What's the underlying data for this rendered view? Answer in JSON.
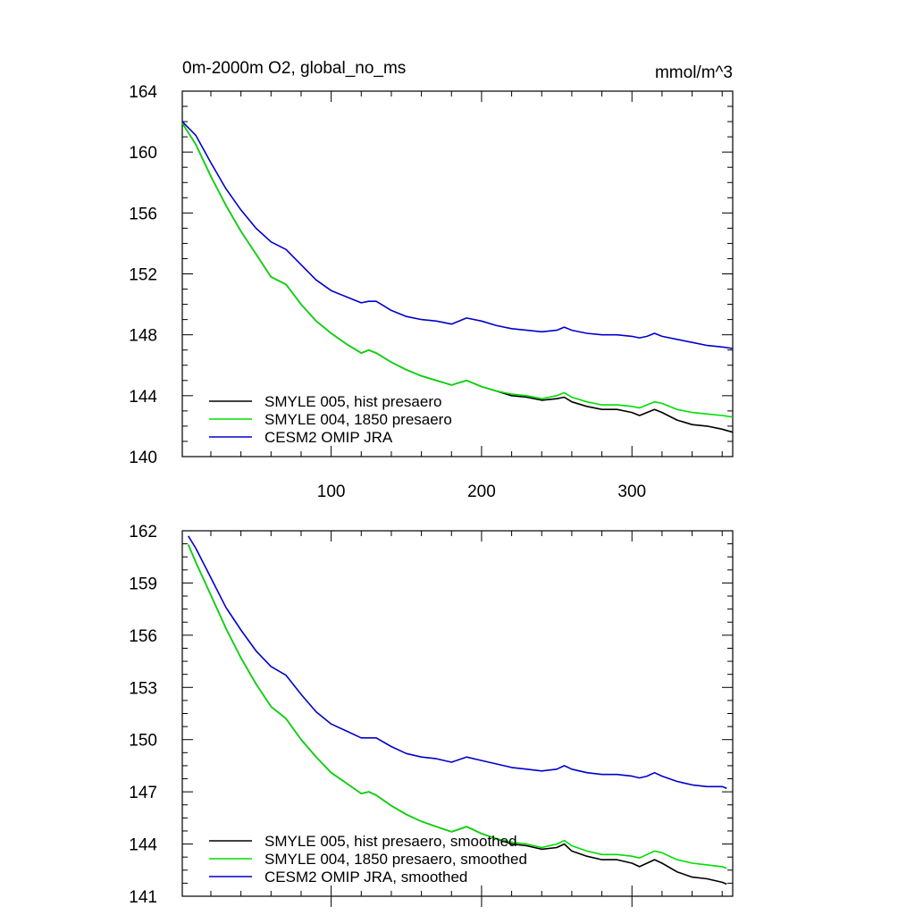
{
  "chart_data": [
    {
      "type": "line",
      "title": "0m-2000m O2, global_no_ms",
      "units": "mmol/m^3",
      "xlabel": "",
      "ylabel": "",
      "xlim": [
        1,
        367
      ],
      "ylim": [
        140,
        164
      ],
      "x_ticks": [
        100,
        200,
        300
      ],
      "y_ticks": [
        140,
        144,
        148,
        152,
        156,
        160,
        164
      ],
      "x_tick_labels_position": "bottom",
      "grid": false,
      "legend_position": "bottom-left",
      "series": [
        {
          "name": "SMYLE 005, hist presaero",
          "color": "#000000",
          "x": [
            1,
            10,
            20,
            30,
            40,
            50,
            60,
            70,
            80,
            90,
            100,
            110,
            120,
            125,
            130,
            140,
            150,
            160,
            170,
            180,
            190,
            200,
            210,
            220,
            230,
            240,
            250,
            255,
            260,
            270,
            280,
            290,
            300,
            305,
            310,
            315,
            320,
            330,
            340,
            350,
            360,
            367
          ],
          "values": [
            161.9,
            160.5,
            158.4,
            156.5,
            154.8,
            153.3,
            151.8,
            151.3,
            150.0,
            148.9,
            148.1,
            147.4,
            146.8,
            147.0,
            146.8,
            146.2,
            145.7,
            145.3,
            145.0,
            144.7,
            145.0,
            144.6,
            144.3,
            144.0,
            143.9,
            143.7,
            143.8,
            143.9,
            143.6,
            143.3,
            143.1,
            143.1,
            142.9,
            142.7,
            142.9,
            143.1,
            142.9,
            142.4,
            142.1,
            142.0,
            141.8,
            141.6
          ]
        },
        {
          "name": "SMYLE 004, 1850 presaero",
          "color": "#00dd00",
          "x": [
            1,
            10,
            20,
            30,
            40,
            50,
            60,
            70,
            80,
            90,
            100,
            110,
            120,
            125,
            130,
            140,
            150,
            160,
            170,
            180,
            190,
            200,
            210,
            220,
            230,
            240,
            250,
            255,
            260,
            270,
            280,
            290,
            300,
            305,
            310,
            315,
            320,
            330,
            340,
            350,
            360,
            367
          ],
          "values": [
            161.9,
            160.5,
            158.4,
            156.5,
            154.8,
            153.3,
            151.8,
            151.3,
            150.0,
            148.9,
            148.1,
            147.4,
            146.8,
            147.0,
            146.8,
            146.2,
            145.7,
            145.3,
            145.0,
            144.7,
            145.0,
            144.6,
            144.3,
            144.1,
            144.0,
            143.8,
            144.0,
            144.2,
            143.9,
            143.6,
            143.4,
            143.4,
            143.3,
            143.2,
            143.4,
            143.6,
            143.5,
            143.1,
            142.9,
            142.8,
            142.7,
            142.6
          ]
        },
        {
          "name": "CESM2 OMIP JRA",
          "color": "#0000cc",
          "x": [
            1,
            10,
            20,
            30,
            40,
            50,
            60,
            70,
            80,
            90,
            100,
            110,
            120,
            125,
            130,
            140,
            150,
            160,
            170,
            180,
            190,
            200,
            210,
            220,
            230,
            240,
            250,
            255,
            260,
            270,
            280,
            290,
            300,
            305,
            310,
            315,
            320,
            330,
            340,
            350,
            360,
            367
          ],
          "values": [
            162.0,
            161.1,
            159.3,
            157.6,
            156.2,
            155.0,
            154.1,
            153.6,
            152.6,
            151.6,
            150.9,
            150.5,
            150.1,
            150.2,
            150.2,
            149.6,
            149.2,
            149.0,
            148.9,
            148.7,
            149.1,
            148.9,
            148.6,
            148.4,
            148.3,
            148.2,
            148.3,
            148.5,
            148.3,
            148.1,
            148.0,
            148.0,
            147.9,
            147.8,
            147.9,
            148.1,
            147.9,
            147.7,
            147.5,
            147.3,
            147.2,
            147.1
          ]
        }
      ]
    },
    {
      "type": "line",
      "title": "",
      "xlabel": "",
      "ylabel": "",
      "xlim": [
        1,
        367
      ],
      "ylim": [
        141,
        162
      ],
      "x_ticks": [
        100,
        200,
        300
      ],
      "y_ticks": [
        141,
        144,
        147,
        150,
        153,
        156,
        159,
        162
      ],
      "grid": false,
      "legend_position": "bottom-left",
      "series": [
        {
          "name": "SMYLE 005, hist presaero, smoothed",
          "color": "#000000",
          "x": [
            5,
            10,
            20,
            30,
            40,
            50,
            60,
            70,
            80,
            90,
            100,
            110,
            120,
            125,
            130,
            140,
            150,
            160,
            170,
            180,
            190,
            200,
            210,
            220,
            230,
            240,
            250,
            255,
            260,
            270,
            280,
            290,
            300,
            305,
            310,
            315,
            320,
            330,
            340,
            350,
            360,
            363
          ],
          "values": [
            161.2,
            160.2,
            158.3,
            156.4,
            154.7,
            153.2,
            151.9,
            151.2,
            150.0,
            149.0,
            148.1,
            147.5,
            146.9,
            147.0,
            146.8,
            146.2,
            145.7,
            145.3,
            145.0,
            144.7,
            145.0,
            144.6,
            144.3,
            144.0,
            143.9,
            143.7,
            143.8,
            144.0,
            143.6,
            143.3,
            143.1,
            143.1,
            142.9,
            142.7,
            142.9,
            143.1,
            142.9,
            142.4,
            142.1,
            142.0,
            141.8,
            141.7
          ]
        },
        {
          "name": "SMYLE 004, 1850 presaero, smoothed",
          "color": "#00dd00",
          "x": [
            5,
            10,
            20,
            30,
            40,
            50,
            60,
            70,
            80,
            90,
            100,
            110,
            120,
            125,
            130,
            140,
            150,
            160,
            170,
            180,
            190,
            200,
            210,
            220,
            230,
            240,
            250,
            255,
            260,
            270,
            280,
            290,
            300,
            305,
            310,
            315,
            320,
            330,
            340,
            350,
            360,
            363
          ],
          "values": [
            161.2,
            160.2,
            158.3,
            156.4,
            154.7,
            153.2,
            151.9,
            151.2,
            150.0,
            149.0,
            148.1,
            147.5,
            146.9,
            147.0,
            146.8,
            146.2,
            145.7,
            145.3,
            145.0,
            144.7,
            145.0,
            144.6,
            144.3,
            144.1,
            144.0,
            143.8,
            144.0,
            144.2,
            143.9,
            143.6,
            143.4,
            143.4,
            143.3,
            143.2,
            143.4,
            143.6,
            143.5,
            143.1,
            142.9,
            142.8,
            142.7,
            142.6
          ]
        },
        {
          "name": "CESM2 OMIP JRA, smoothed",
          "color": "#0000cc",
          "x": [
            5,
            10,
            20,
            30,
            40,
            50,
            60,
            70,
            80,
            90,
            100,
            110,
            120,
            125,
            130,
            140,
            150,
            160,
            170,
            180,
            190,
            200,
            210,
            220,
            230,
            240,
            250,
            255,
            260,
            270,
            280,
            290,
            300,
            305,
            310,
            315,
            320,
            330,
            340,
            350,
            360,
            363
          ],
          "values": [
            161.7,
            161.0,
            159.3,
            157.6,
            156.3,
            155.1,
            154.2,
            153.7,
            152.6,
            151.6,
            150.9,
            150.5,
            150.1,
            150.1,
            150.1,
            149.6,
            149.2,
            149.0,
            148.9,
            148.7,
            149.0,
            148.8,
            148.6,
            148.4,
            148.3,
            148.2,
            148.3,
            148.5,
            148.3,
            148.1,
            148.0,
            148.0,
            147.9,
            147.8,
            147.9,
            148.1,
            147.9,
            147.6,
            147.4,
            147.3,
            147.3,
            147.2
          ]
        }
      ]
    }
  ]
}
